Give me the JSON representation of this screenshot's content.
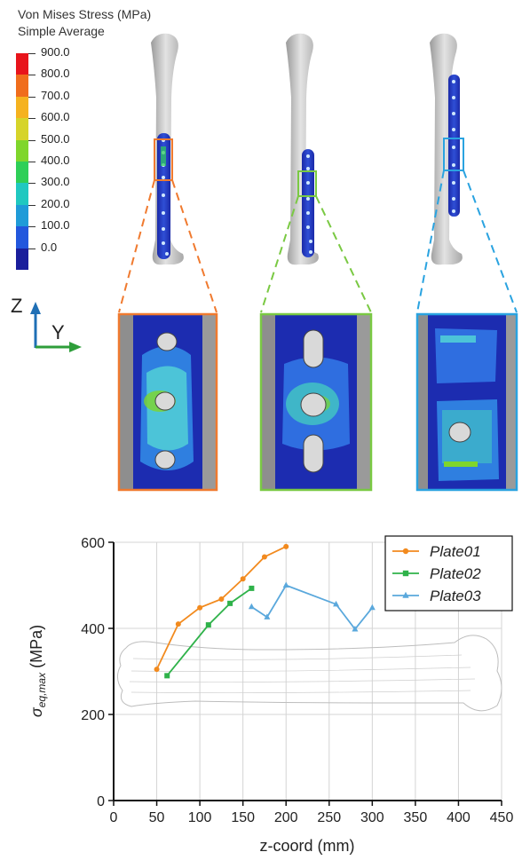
{
  "contour_legend": {
    "title_line1": "Von Mises Stress (MPa)",
    "title_line2": "Simple Average",
    "levels": [
      "900.0",
      "800.0",
      "700.0",
      "600.0",
      "500.0",
      "400.0",
      "300.0",
      "200.0",
      "100.0",
      "0.0"
    ],
    "band_colors": [
      "#e8141b",
      "#f06d1c",
      "#f5b21f",
      "#d6d42a",
      "#7fd62b",
      "#2ecf57",
      "#20c8c0",
      "#1f9bd8",
      "#2257dd",
      "#1a1e9c"
    ]
  },
  "axes_triad": {
    "z_label": "Z",
    "y_label": "Y"
  },
  "zoom_colors": [
    "#f07a2f",
    "#7ac943",
    "#2aa3e0"
  ],
  "chart_data": {
    "type": "line",
    "xlabel": "z-coord (mm)",
    "ylabel_main": "σ",
    "ylabel_sub": "eq,max",
    "ylabel_unit": " (MPa)",
    "xlim": [
      0,
      450
    ],
    "ylim": [
      0,
      600
    ],
    "xticks": [
      0,
      50,
      100,
      150,
      200,
      250,
      300,
      350,
      400,
      450
    ],
    "yticks": [
      0,
      200,
      400,
      600
    ],
    "grid": true,
    "legend_position": "top-right",
    "series": [
      {
        "name": "Plate01",
        "color": "#f28a1e",
        "marker": "circle",
        "x": [
          50,
          75,
          100,
          125,
          150,
          175,
          200
        ],
        "y": [
          305,
          410,
          448,
          468,
          515,
          566,
          590
        ]
      },
      {
        "name": "Plate02",
        "color": "#2fb24a",
        "marker": "square",
        "x": [
          62,
          110,
          135,
          160
        ],
        "y": [
          290,
          408,
          458,
          493
        ]
      },
      {
        "name": "Plate03",
        "color": "#5aa8dc",
        "marker": "triangle",
        "x": [
          160,
          178,
          200,
          258,
          280,
          300
        ],
        "y": [
          450,
          426,
          500,
          456,
          398,
          448
        ]
      }
    ]
  }
}
